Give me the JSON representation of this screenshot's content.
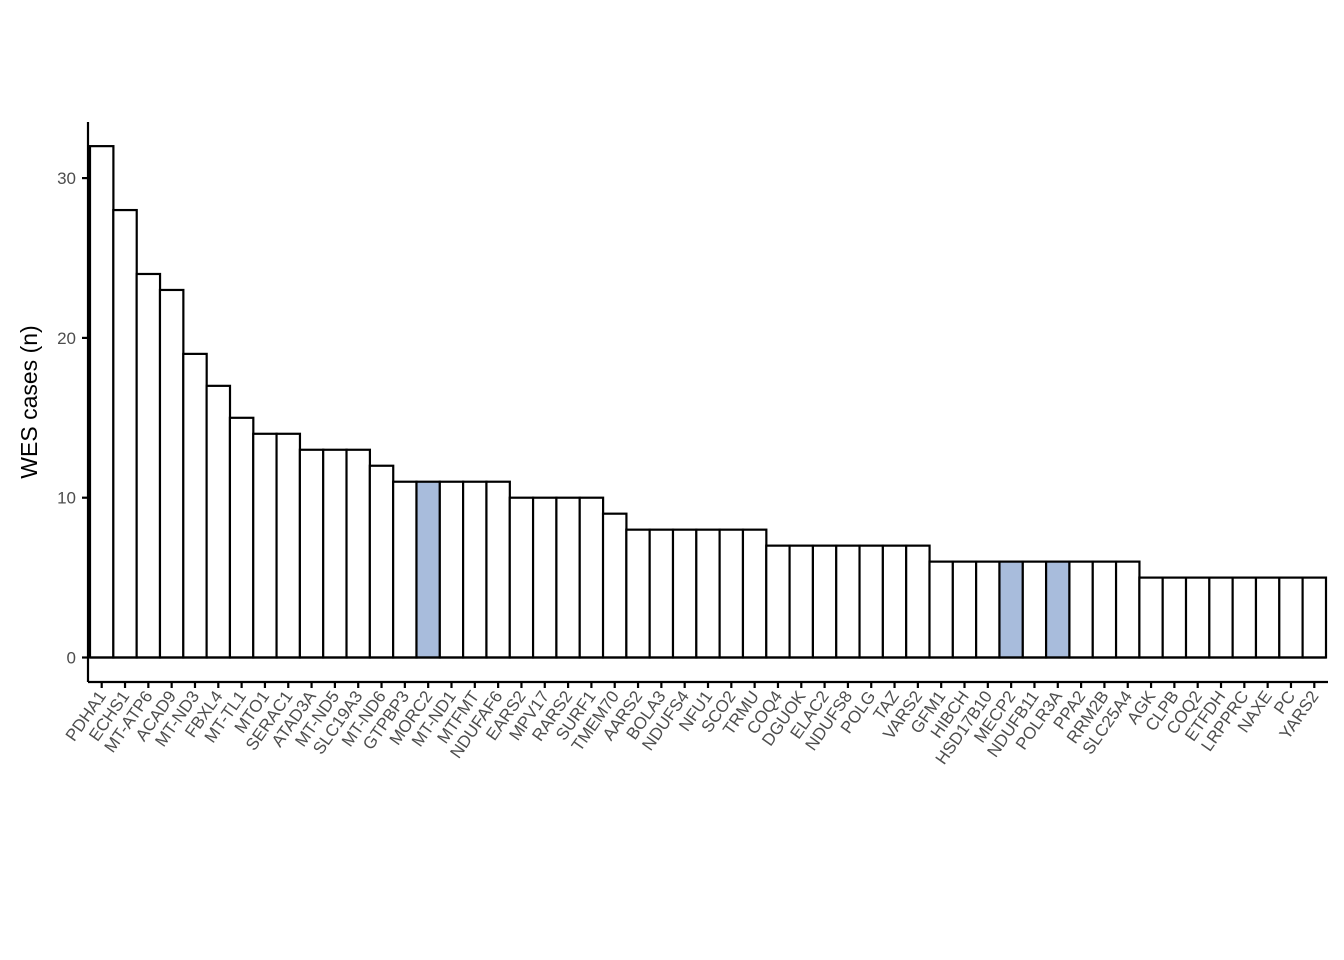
{
  "chart_data": {
    "type": "bar",
    "title": "",
    "xlabel": "",
    "ylabel": "WES cases (n)",
    "ylim": [
      0,
      32
    ],
    "yticks": [
      0,
      10,
      20,
      30
    ],
    "grid": false,
    "legend": "none",
    "colors": {
      "default_fill": "#ffffff",
      "highlight_fill": "#a8bcdc",
      "outline": "#000000"
    },
    "highlighted": [
      "MORC2",
      "MECP2",
      "POLR3A"
    ],
    "categories": [
      "PDHA1",
      "ECHS1",
      "MT-ATP6",
      "ACAD9",
      "MT-ND3",
      "FBXL4",
      "MT-TL1",
      "MTO1",
      "SERAC1",
      "ATAD3A",
      "MT-ND5",
      "SLC19A3",
      "MT-ND6",
      "GTPBP3",
      "MORC2",
      "MT-ND1",
      "MTFMT",
      "NDUFAF6",
      "EARS2",
      "MPV17",
      "RARS2",
      "SURF1",
      "TMEM70",
      "AARS2",
      "BOLA3",
      "NDUFS4",
      "NFU1",
      "SCO2",
      "TRMU",
      "COQ4",
      "DGUOK",
      "ELAC2",
      "NDUFS8",
      "POLG",
      "TAZ",
      "VARS2",
      "GFM1",
      "HIBCH",
      "HSD17B10",
      "MECP2",
      "NDUFB11",
      "POLR3A",
      "PPA2",
      "RRM2B",
      "SLC25A4",
      "AGK",
      "CLPB",
      "COQ2",
      "ETFDH",
      "LRPPRC",
      "NAXE",
      "PC",
      "YARS2"
    ],
    "values": [
      32,
      28,
      24,
      23,
      19,
      17,
      15,
      14,
      14,
      13,
      13,
      13,
      12,
      11,
      11,
      11,
      11,
      11,
      10,
      10,
      10,
      10,
      9,
      8,
      8,
      8,
      8,
      8,
      8,
      7,
      7,
      7,
      7,
      7,
      7,
      7,
      6,
      6,
      6,
      6,
      6,
      6,
      6,
      6,
      6,
      5,
      5,
      5,
      5,
      5,
      5,
      5,
      5
    ]
  }
}
